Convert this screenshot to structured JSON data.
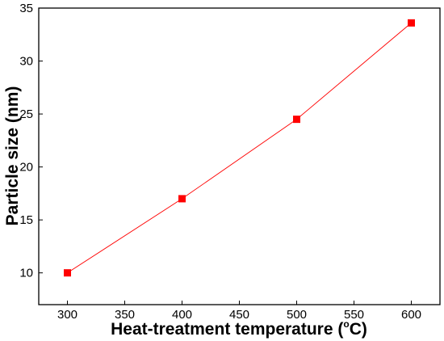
{
  "chart_data": {
    "type": "line",
    "xlabel": "Heat-treatment temperature (",
    "xlabel_degree": "o",
    "xlabel_unit": "C)",
    "ylabel": "Particle size (nm)",
    "xlim": [
      275,
      625
    ],
    "ylim": [
      7,
      35
    ],
    "x_ticks": [
      300,
      350,
      400,
      450,
      500,
      550,
      600
    ],
    "y_ticks": [
      10,
      15,
      20,
      25,
      30,
      35
    ],
    "grid": false,
    "series": [
      {
        "x": [
          300,
          400,
          500,
          600
        ],
        "y": [
          10.0,
          17.0,
          24.5,
          33.6
        ],
        "color": "#ff0000",
        "marker": "square"
      }
    ]
  }
}
